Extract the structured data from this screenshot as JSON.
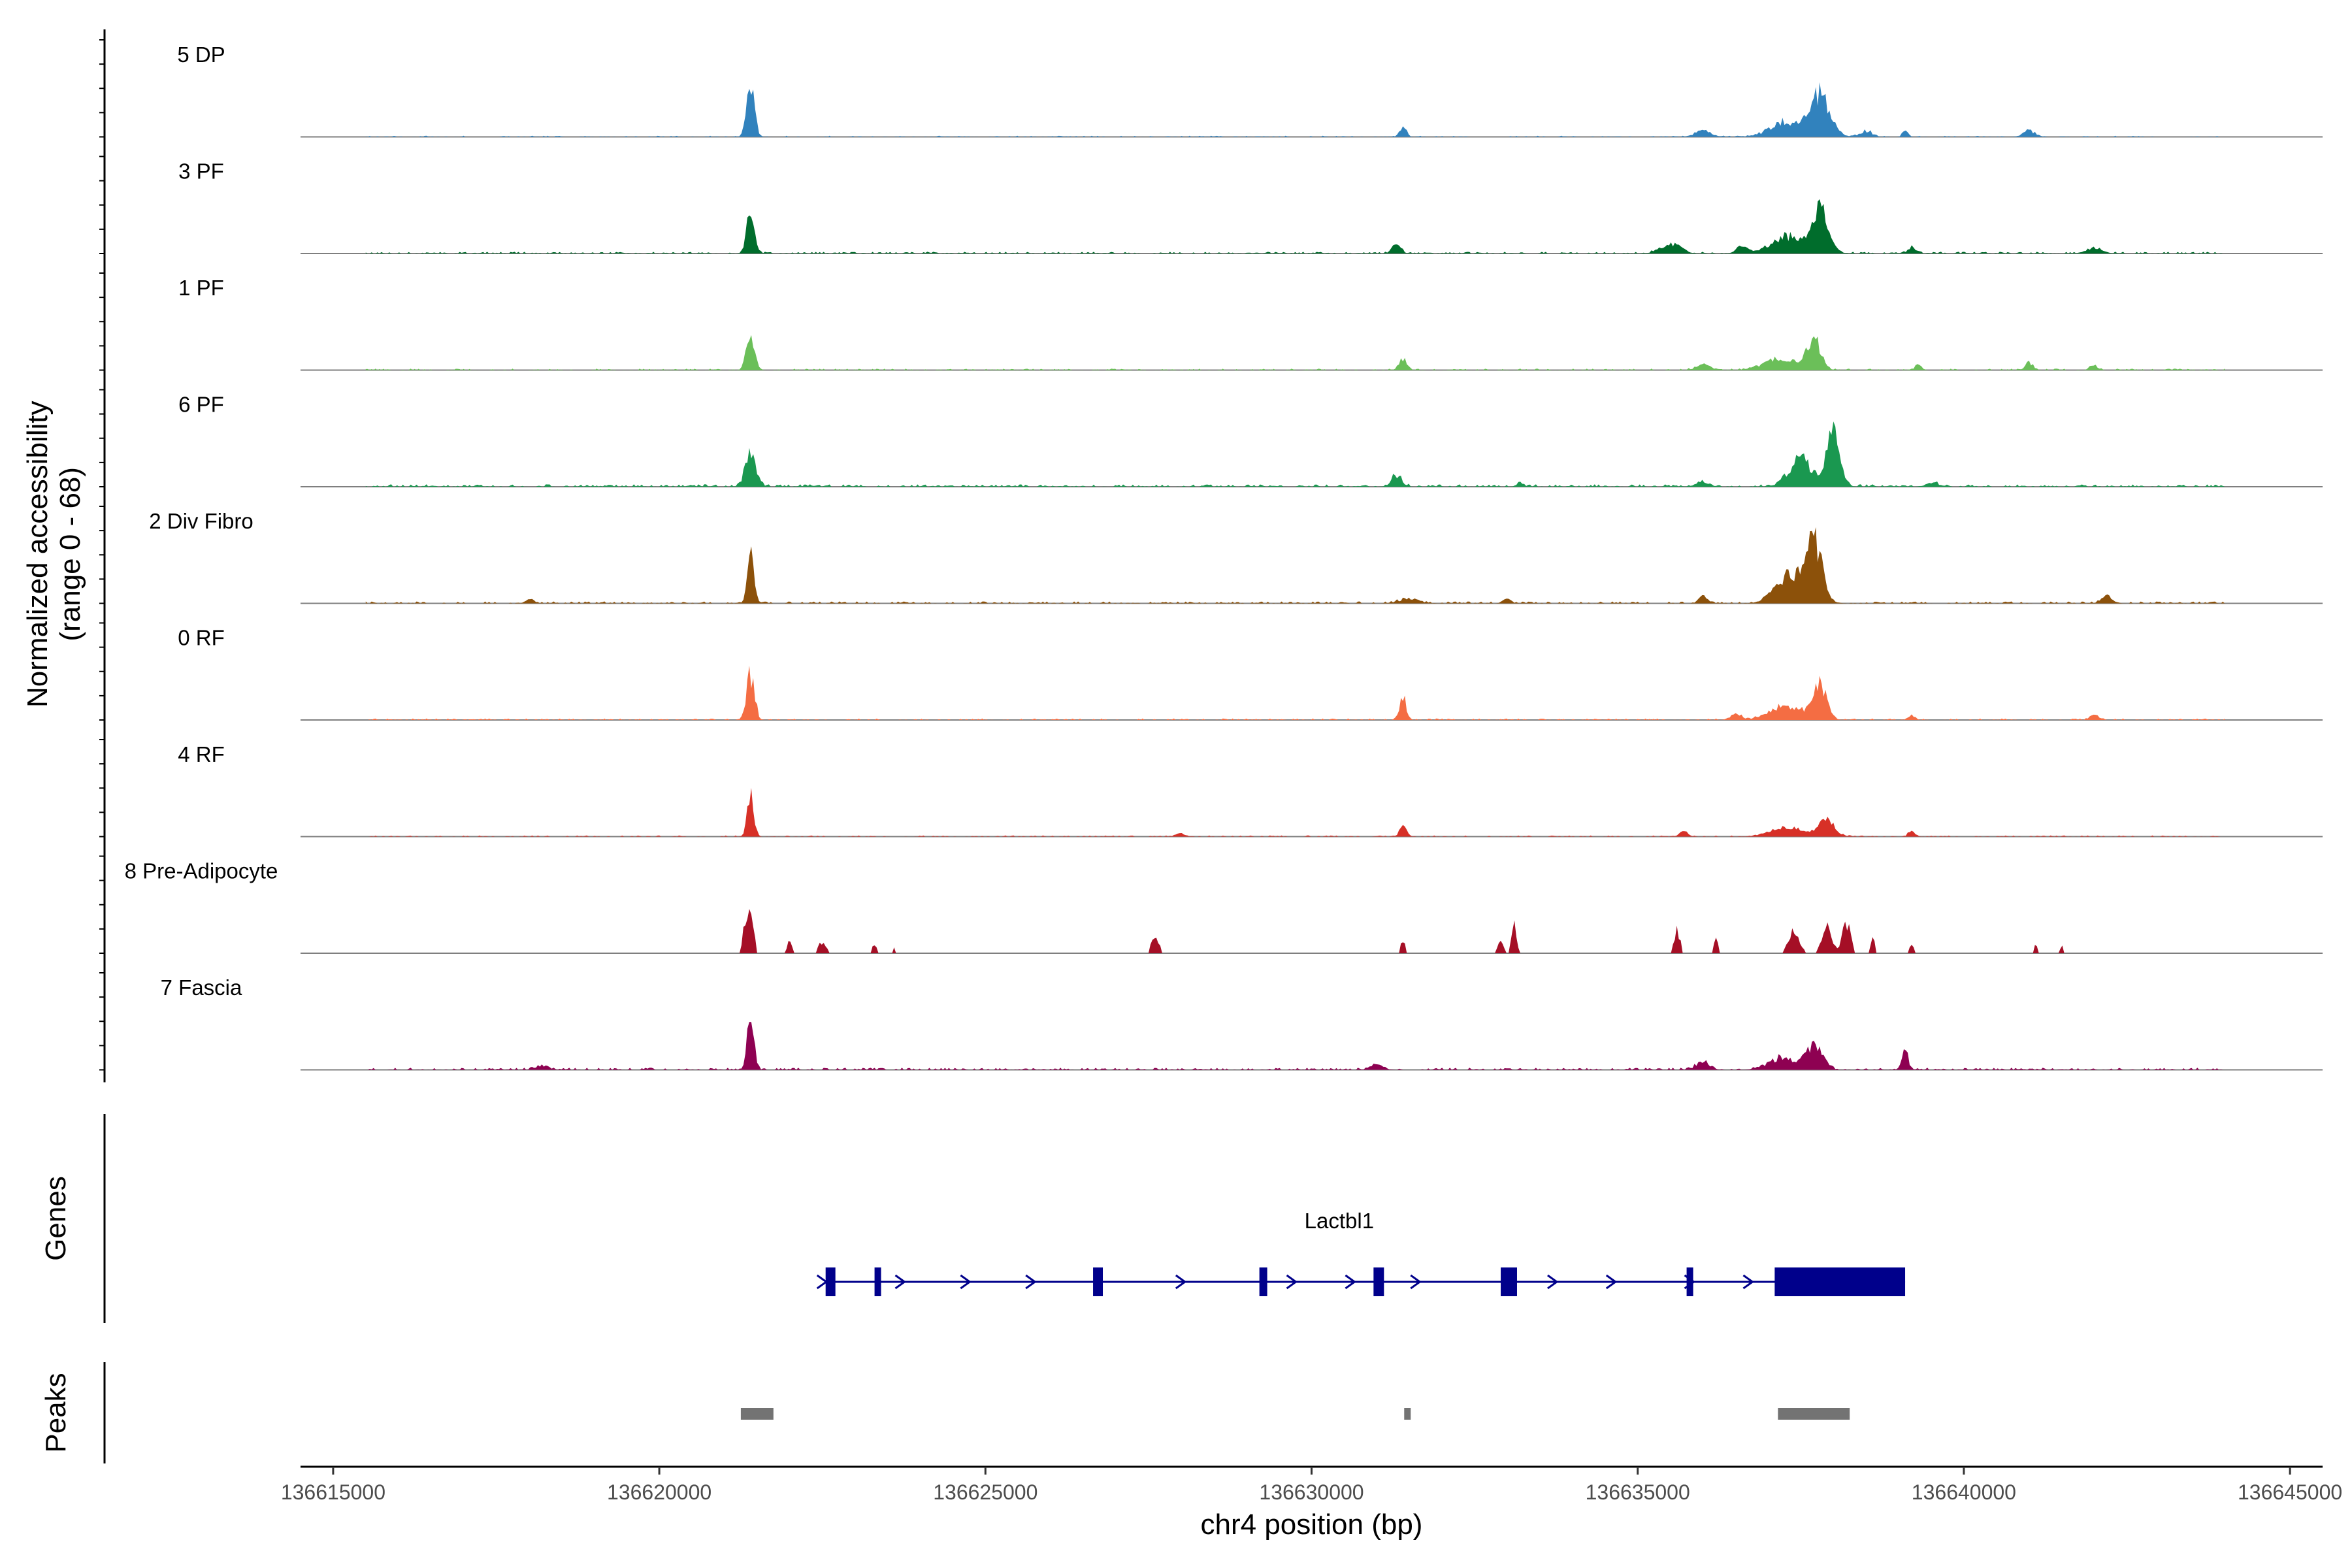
{
  "chart_data": {
    "type": "area",
    "title": "",
    "ylabel": [
      "Normalized accessibility",
      "(range 0 - 68)"
    ],
    "xlabel": "chr4 position (bp)",
    "x_range": [
      136614500,
      136645500
    ],
    "y_range": [
      0,
      68
    ],
    "x_ticks": [
      136615000,
      136620000,
      136625000,
      136630000,
      136635000,
      136640000,
      136645000
    ],
    "x_tick_labels": [
      "136615000",
      "136620000",
      "136625000",
      "136630000",
      "136635000",
      "136640000",
      "136645000"
    ],
    "resolution_bp": 30,
    "tracks": [
      {
        "name": "5 DP",
        "color": "#3182BD",
        "noise": 0.012,
        "density": 0.35,
        "peaks": [
          [
            136621400,
            60,
            0.62
          ],
          [
            136637800,
            150,
            0.55
          ],
          [
            136637300,
            250,
            0.2
          ],
          [
            136631400,
            50,
            0.14
          ],
          [
            136636000,
            120,
            0.08
          ],
          [
            136638500,
            90,
            0.08
          ],
          [
            136639100,
            40,
            0.1
          ],
          [
            136641000,
            90,
            0.08
          ]
        ]
      },
      {
        "name": "3 PF",
        "color": "#006D2C",
        "noise": 0.018,
        "density": 0.55,
        "peaks": [
          [
            136621400,
            60,
            0.55
          ],
          [
            136637800,
            120,
            0.6
          ],
          [
            136637300,
            250,
            0.22
          ],
          [
            136631300,
            60,
            0.14
          ],
          [
            136635500,
            150,
            0.12
          ],
          [
            136636600,
            80,
            0.1
          ],
          [
            136639200,
            60,
            0.08
          ],
          [
            136642000,
            120,
            0.07
          ]
        ]
      },
      {
        "name": "1 PF",
        "color": "#6BBF59",
        "noise": 0.015,
        "density": 0.45,
        "peaks": [
          [
            136621400,
            60,
            0.5
          ],
          [
            136637700,
            100,
            0.42
          ],
          [
            136637200,
            250,
            0.15
          ],
          [
            136631400,
            60,
            0.15
          ],
          [
            136636000,
            100,
            0.08
          ],
          [
            136639300,
            50,
            0.07
          ],
          [
            136641000,
            60,
            0.1
          ],
          [
            136642000,
            60,
            0.06
          ]
        ]
      },
      {
        "name": "6 PF",
        "color": "#1A9850",
        "noise": 0.025,
        "density": 0.55,
        "peaks": [
          [
            136621400,
            80,
            0.45
          ],
          [
            136638000,
            100,
            0.72
          ],
          [
            136637500,
            180,
            0.35
          ],
          [
            136631300,
            80,
            0.14
          ],
          [
            136633200,
            50,
            0.06
          ],
          [
            136636000,
            100,
            0.06
          ],
          [
            136639500,
            80,
            0.06
          ]
        ]
      },
      {
        "name": "2 Div Fibro",
        "color": "#8C510A",
        "noise": 0.02,
        "density": 0.5,
        "peaks": [
          [
            136621400,
            50,
            0.72
          ],
          [
            136637700,
            130,
            0.78
          ],
          [
            136637300,
            200,
            0.35
          ],
          [
            136636000,
            60,
            0.1
          ],
          [
            136631500,
            150,
            0.06
          ],
          [
            136633000,
            60,
            0.06
          ],
          [
            136642200,
            80,
            0.1
          ],
          [
            136618000,
            50,
            0.06
          ]
        ]
      },
      {
        "name": "0 RF",
        "color": "#F46D43",
        "noise": 0.015,
        "density": 0.45,
        "peaks": [
          [
            136621400,
            60,
            0.6
          ],
          [
            136637800,
            100,
            0.45
          ],
          [
            136637300,
            250,
            0.2
          ],
          [
            136631400,
            50,
            0.3
          ],
          [
            136636500,
            80,
            0.08
          ],
          [
            136639200,
            50,
            0.07
          ],
          [
            136642000,
            60,
            0.06
          ]
        ]
      },
      {
        "name": "4 RF",
        "color": "#D73027",
        "noise": 0.012,
        "density": 0.4,
        "peaks": [
          [
            136621400,
            50,
            0.55
          ],
          [
            136637900,
            120,
            0.22
          ],
          [
            136637300,
            250,
            0.12
          ],
          [
            136631400,
            50,
            0.15
          ],
          [
            136635700,
            60,
            0.08
          ],
          [
            136639200,
            50,
            0.08
          ],
          [
            136628000,
            60,
            0.05
          ]
        ]
      },
      {
        "name": "8 Pre-Adipocyte",
        "color": "#A50F26",
        "noise": 0,
        "density": 0,
        "sparse": true,
        "peaks": [
          [
            136621400,
            40,
            0.75
          ],
          [
            136621300,
            30,
            0.3
          ],
          [
            136622000,
            30,
            0.18
          ],
          [
            136622500,
            60,
            0.15
          ],
          [
            136623300,
            30,
            0.12
          ],
          [
            136623600,
            20,
            0.1
          ],
          [
            136627600,
            60,
            0.2
          ],
          [
            136631400,
            30,
            0.2
          ],
          [
            136633100,
            40,
            0.35
          ],
          [
            136632900,
            40,
            0.2
          ],
          [
            136635600,
            50,
            0.3
          ],
          [
            136636200,
            30,
            0.2
          ],
          [
            136637400,
            80,
            0.3
          ],
          [
            136637900,
            80,
            0.35
          ],
          [
            136638200,
            60,
            0.38
          ],
          [
            136638600,
            30,
            0.22
          ],
          [
            136639200,
            30,
            0.15
          ],
          [
            136641100,
            30,
            0.1
          ],
          [
            136641500,
            20,
            0.1
          ]
        ]
      },
      {
        "name": "7 Fascia",
        "color": "#8E0152",
        "noise": 0.022,
        "density": 0.55,
        "peaks": [
          [
            136621400,
            50,
            0.78
          ],
          [
            136637700,
            130,
            0.32
          ],
          [
            136637200,
            200,
            0.15
          ],
          [
            136639100,
            50,
            0.22
          ],
          [
            136636000,
            100,
            0.1
          ],
          [
            136618200,
            100,
            0.06
          ],
          [
            136631000,
            100,
            0.06
          ]
        ]
      }
    ],
    "genes": [
      {
        "name": "Lactbl1",
        "strand": "+",
        "start": 136622550,
        "end": 136639100,
        "intron_arrows": [
          136622500,
          136623700,
          136624700,
          136625700,
          136628000,
          136629700,
          136630600,
          136631600,
          136633700,
          136634600,
          136635800,
          136636700
        ],
        "exons": [
          [
            136622550,
            136622700
          ],
          [
            136623300,
            136623380
          ],
          [
            136626650,
            136626800
          ],
          [
            136629200,
            136629320
          ],
          [
            136630950,
            136631110
          ],
          [
            136632900,
            136633150
          ],
          [
            136635750,
            136635850
          ],
          [
            136637100,
            136639100
          ]
        ]
      }
    ],
    "peaks": [
      [
        136621250,
        136621750
      ],
      [
        136631420,
        136631520
      ],
      [
        136637150,
        136638250
      ]
    ]
  },
  "panels": {
    "genes_label": "Genes",
    "peaks_label": "Peaks"
  }
}
